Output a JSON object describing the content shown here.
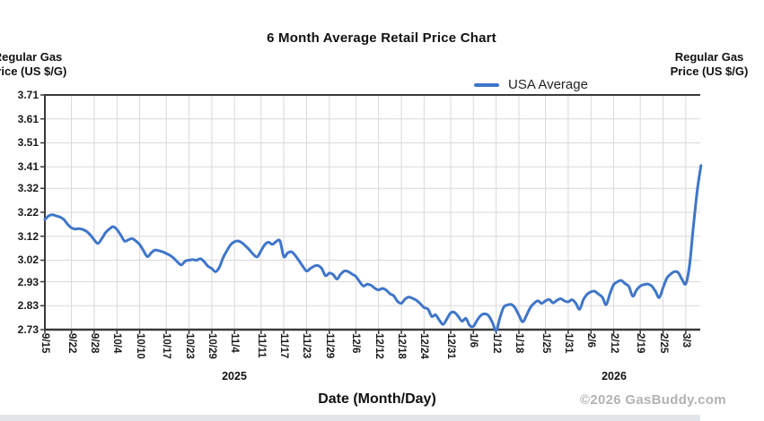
{
  "title": "6 Month Average Retail Price Chart",
  "y_axis_title": {
    "line1": "Regular Gas",
    "line2": "Price (US $/G)"
  },
  "legend": {
    "label": "USA Average"
  },
  "x_axis_title": "Date (Month/Day)",
  "copyright": "©2026 GasBuddy.com",
  "year_labels": [
    {
      "text": "2025",
      "tick_label": "11/4"
    },
    {
      "text": "2026",
      "tick_label": "2/12"
    }
  ],
  "chart_data": {
    "type": "line",
    "title": "6 Month Average Retail Price Chart",
    "xlabel": "Date (Month/Day)",
    "ylabel": "Regular Gas Price (US $/G)",
    "ylim": [
      2.73,
      3.71
    ],
    "y_ticks": [
      3.71,
      3.61,
      3.51,
      3.41,
      3.32,
      3.22,
      3.12,
      3.02,
      2.93,
      2.83,
      2.73
    ],
    "x_tick_labels": [
      "9/15",
      "9/22",
      "9/28",
      "10/4",
      "10/10",
      "10/17",
      "10/23",
      "10/29",
      "11/4",
      "11/11",
      "11/17",
      "11/23",
      "11/29",
      "12/6",
      "12/12",
      "12/18",
      "12/24",
      "12/31",
      "1/6",
      "1/12",
      "1/18",
      "1/25",
      "1/31",
      "2/6",
      "2/12",
      "2/19",
      "2/25",
      "3/3"
    ],
    "x_tick_days": [
      0,
      7,
      13,
      19,
      25,
      32,
      38,
      44,
      50,
      57,
      63,
      69,
      75,
      82,
      88,
      94,
      100,
      107,
      113,
      119,
      125,
      132,
      138,
      144,
      150,
      157,
      163,
      169
    ],
    "x_range_days": [
      0,
      173
    ],
    "grid": true,
    "legend_position": "top",
    "line_color": "#3f76c9",
    "grid_color": "#d9d9d9",
    "axis_color": "#3a3a3a",
    "series": [
      {
        "name": "USA Average",
        "color": "#3f76c9",
        "points": [
          [
            0,
            3.19
          ],
          [
            1,
            3.205
          ],
          [
            2,
            3.21
          ],
          [
            3,
            3.205
          ],
          [
            4,
            3.2
          ],
          [
            5,
            3.19
          ],
          [
            6,
            3.17
          ],
          [
            7,
            3.155
          ],
          [
            8,
            3.15
          ],
          [
            9,
            3.152
          ],
          [
            10,
            3.148
          ],
          [
            11,
            3.14
          ],
          [
            12,
            3.125
          ],
          [
            13,
            3.105
          ],
          [
            14,
            3.09
          ],
          [
            15,
            3.11
          ],
          [
            16,
            3.135
          ],
          [
            17,
            3.15
          ],
          [
            18,
            3.16
          ],
          [
            19,
            3.148
          ],
          [
            20,
            3.125
          ],
          [
            21,
            3.1
          ],
          [
            22,
            3.105
          ],
          [
            23,
            3.11
          ],
          [
            24,
            3.1
          ],
          [
            25,
            3.085
          ],
          [
            26,
            3.06
          ],
          [
            27,
            3.035
          ],
          [
            28,
            3.05
          ],
          [
            29,
            3.062
          ],
          [
            30,
            3.06
          ],
          [
            31,
            3.055
          ],
          [
            32,
            3.048
          ],
          [
            33,
            3.04
          ],
          [
            34,
            3.028
          ],
          [
            35,
            3.012
          ],
          [
            36,
            3.0
          ],
          [
            37,
            3.016
          ],
          [
            38,
            3.02
          ],
          [
            39,
            3.022
          ],
          [
            40,
            3.02
          ],
          [
            41,
            3.026
          ],
          [
            42,
            3.014
          ],
          [
            43,
            2.995
          ],
          [
            44,
            2.985
          ],
          [
            45,
            2.972
          ],
          [
            46,
            2.99
          ],
          [
            47,
            3.03
          ],
          [
            48,
            3.06
          ],
          [
            49,
            3.085
          ],
          [
            50,
            3.097
          ],
          [
            51,
            3.1
          ],
          [
            52,
            3.092
          ],
          [
            53,
            3.078
          ],
          [
            54,
            3.062
          ],
          [
            55,
            3.044
          ],
          [
            56,
            3.034
          ],
          [
            57,
            3.06
          ],
          [
            58,
            3.085
          ],
          [
            59,
            3.095
          ],
          [
            60,
            3.086
          ],
          [
            61,
            3.098
          ],
          [
            62,
            3.1
          ],
          [
            63,
            3.035
          ],
          [
            64,
            3.05
          ],
          [
            65,
            3.055
          ],
          [
            66,
            3.04
          ],
          [
            67,
            3.018
          ],
          [
            68,
            2.995
          ],
          [
            69,
            2.975
          ],
          [
            70,
            2.985
          ],
          [
            71,
            2.995
          ],
          [
            72,
            2.998
          ],
          [
            73,
            2.985
          ],
          [
            74,
            2.955
          ],
          [
            75,
            2.966
          ],
          [
            76,
            2.96
          ],
          [
            77,
            2.941
          ],
          [
            78,
            2.962
          ],
          [
            79,
            2.975
          ],
          [
            80,
            2.972
          ],
          [
            81,
            2.962
          ],
          [
            82,
            2.952
          ],
          [
            83,
            2.93
          ],
          [
            84,
            2.912
          ],
          [
            85,
            2.92
          ],
          [
            86,
            2.915
          ],
          [
            87,
            2.903
          ],
          [
            88,
            2.896
          ],
          [
            89,
            2.902
          ],
          [
            90,
            2.895
          ],
          [
            91,
            2.88
          ],
          [
            92,
            2.871
          ],
          [
            93,
            2.848
          ],
          [
            94,
            2.84
          ],
          [
            95,
            2.858
          ],
          [
            96,
            2.866
          ],
          [
            97,
            2.86
          ],
          [
            98,
            2.852
          ],
          [
            99,
            2.838
          ],
          [
            100,
            2.822
          ],
          [
            101,
            2.816
          ],
          [
            102,
            2.785
          ],
          [
            103,
            2.792
          ],
          [
            104,
            2.77
          ],
          [
            105,
            2.752
          ],
          [
            106,
            2.775
          ],
          [
            107,
            2.8
          ],
          [
            108,
            2.802
          ],
          [
            109,
            2.785
          ],
          [
            110,
            2.765
          ],
          [
            111,
            2.777
          ],
          [
            112,
            2.748
          ],
          [
            113,
            2.744
          ],
          [
            114,
            2.77
          ],
          [
            115,
            2.79
          ],
          [
            116,
            2.796
          ],
          [
            117,
            2.788
          ],
          [
            118,
            2.76
          ],
          [
            119,
            2.725
          ],
          [
            120,
            2.78
          ],
          [
            121,
            2.824
          ],
          [
            122,
            2.833
          ],
          [
            123,
            2.835
          ],
          [
            124,
            2.82
          ],
          [
            125,
            2.79
          ],
          [
            126,
            2.763
          ],
          [
            127,
            2.79
          ],
          [
            128,
            2.822
          ],
          [
            129,
            2.84
          ],
          [
            130,
            2.85
          ],
          [
            131,
            2.84
          ],
          [
            132,
            2.85
          ],
          [
            133,
            2.856
          ],
          [
            134,
            2.842
          ],
          [
            135,
            2.852
          ],
          [
            136,
            2.859
          ],
          [
            137,
            2.85
          ],
          [
            138,
            2.846
          ],
          [
            139,
            2.855
          ],
          [
            140,
            2.84
          ],
          [
            141,
            2.815
          ],
          [
            142,
            2.855
          ],
          [
            143,
            2.878
          ],
          [
            144,
            2.888
          ],
          [
            145,
            2.89
          ],
          [
            146,
            2.878
          ],
          [
            147,
            2.865
          ],
          [
            148,
            2.834
          ],
          [
            149,
            2.88
          ],
          [
            150,
            2.918
          ],
          [
            151,
            2.93
          ],
          [
            152,
            2.935
          ],
          [
            153,
            2.922
          ],
          [
            154,
            2.91
          ],
          [
            155,
            2.87
          ],
          [
            156,
            2.895
          ],
          [
            157,
            2.912
          ],
          [
            158,
            2.918
          ],
          [
            159,
            2.92
          ],
          [
            160,
            2.912
          ],
          [
            161,
            2.89
          ],
          [
            162,
            2.864
          ],
          [
            163,
            2.905
          ],
          [
            164,
            2.945
          ],
          [
            165,
            2.962
          ],
          [
            166,
            2.972
          ],
          [
            167,
            2.968
          ],
          [
            168,
            2.94
          ],
          [
            169,
            2.922
          ],
          [
            170,
            3.0
          ],
          [
            171,
            3.16
          ],
          [
            172,
            3.31
          ],
          [
            173,
            3.415
          ]
        ]
      }
    ]
  }
}
